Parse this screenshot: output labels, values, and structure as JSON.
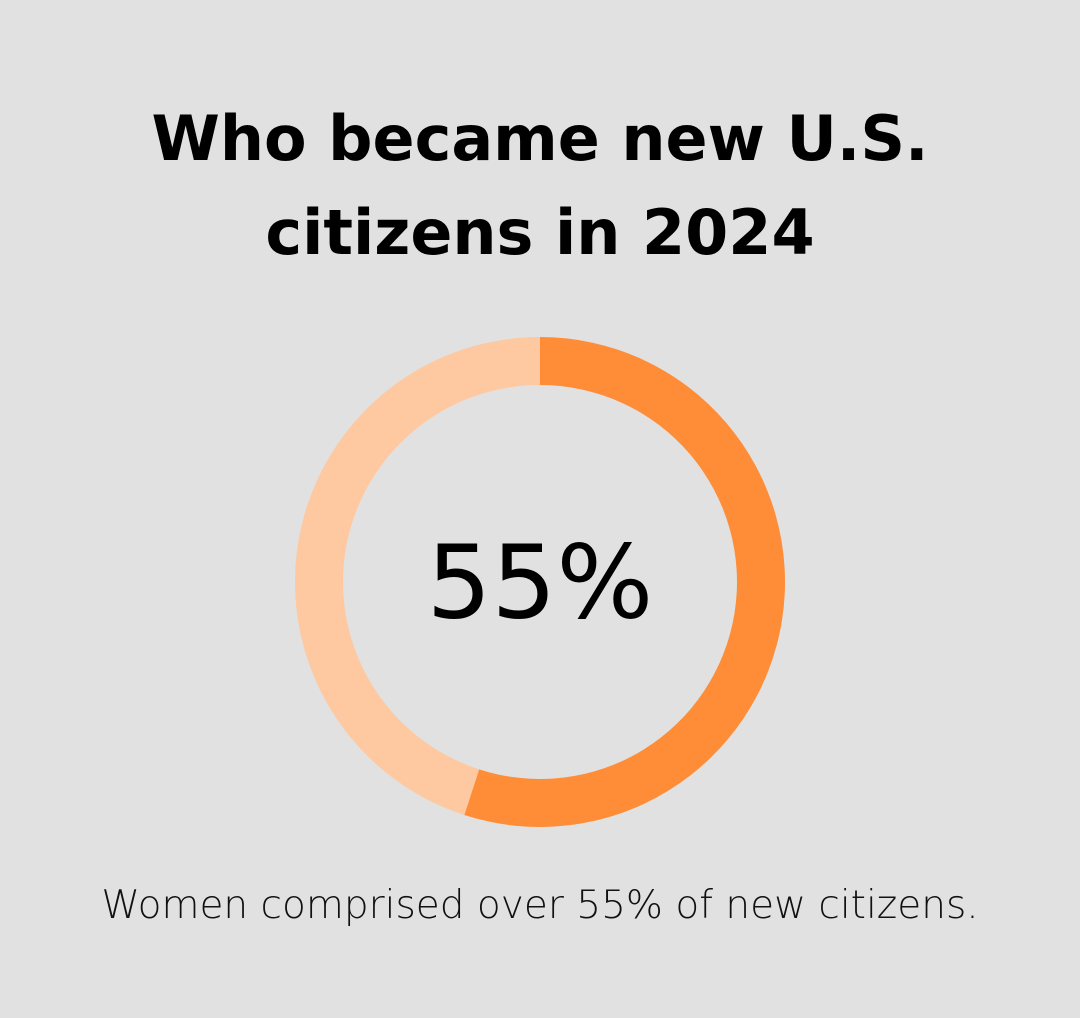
{
  "chart_data": {
    "type": "pie",
    "title_lines": [
      "Who became new U.S.",
      "citizens in 2024"
    ],
    "center_label": "55%",
    "caption": "Women comprised over 55% of new citizens.",
    "slices": [
      {
        "value": 55,
        "color": "#ff8c37"
      },
      {
        "value": 45,
        "color": "#fec9a0"
      }
    ]
  },
  "colors": {
    "background": "#e0e1e0",
    "accent": "#ff8c37",
    "accent_light": "#fec9a0",
    "text": "#000000"
  }
}
